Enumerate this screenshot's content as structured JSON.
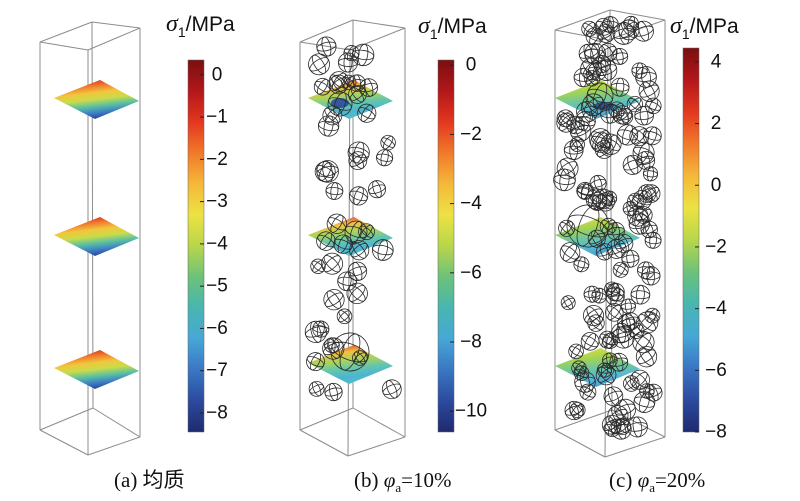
{
  "colormap": [
    "#7a0f10",
    "#b3171a",
    "#e3371f",
    "#f17a2a",
    "#f5b83a",
    "#ece243",
    "#b8d64a",
    "#6cc27a",
    "#48b6b0",
    "#47a7d6",
    "#3a76c4",
    "#2c4a9e",
    "#1f2b6e"
  ],
  "panels": [
    {
      "colorbar": {
        "title": {
          "symbol": "σ",
          "subscript": "1",
          "unit": "/MPa"
        },
        "range": [
          -8.45,
          0.35
        ],
        "ticks": [
          {
            "value": 0,
            "label": "0"
          },
          {
            "value": -1,
            "label": "−1"
          },
          {
            "value": -2,
            "label": "−2"
          },
          {
            "value": -3,
            "label": "−3"
          },
          {
            "value": -4,
            "label": "−4"
          },
          {
            "value": -5,
            "label": "−5"
          },
          {
            "value": -6,
            "label": "−6"
          },
          {
            "value": -7,
            "label": "−7"
          },
          {
            "value": -8,
            "label": "−8"
          }
        ]
      },
      "slice_colors": [
        "#d9281f",
        "#ef7a2c",
        "#f2c63c",
        "#c9dc4a",
        "#59c0a3",
        "#3b7cc6",
        "#263a8c"
      ],
      "caption": {
        "prefix": "(a) 均质"
      }
    },
    {
      "colorbar": {
        "title": {
          "symbol": "σ",
          "subscript": "1",
          "unit": "/MPa"
        },
        "range": [
          -10.6,
          0.15
        ],
        "ticks": [
          {
            "value": 0,
            "label": "0"
          },
          {
            "value": -2,
            "label": "−2"
          },
          {
            "value": -4,
            "label": "−4"
          },
          {
            "value": -6,
            "label": "−6"
          },
          {
            "value": -8,
            "label": "−8"
          },
          {
            "value": -10,
            "label": "−10"
          }
        ]
      },
      "slice_colors": [
        "#e2452a",
        "#f0c144",
        "#a9d45c",
        "#63c6ad",
        "#4cb4d2",
        "#58bfc4"
      ],
      "caption": {
        "prefix": "(b) ",
        "symbol": "φ",
        "subscript": "a",
        "suffix": "=10%"
      }
    },
    {
      "colorbar": {
        "title": {
          "symbol": "σ",
          "subscript": "1",
          "unit": "/MPa"
        },
        "range": [
          -8.0,
          4.45
        ],
        "ticks": [
          {
            "value": 4,
            "label": "4"
          },
          {
            "value": 2,
            "label": "2"
          },
          {
            "value": 0,
            "label": "0"
          },
          {
            "value": -2,
            "label": "−2"
          },
          {
            "value": -4,
            "label": "−4"
          },
          {
            "value": -6,
            "label": "−6"
          },
          {
            "value": -8,
            "label": "−8"
          }
        ]
      },
      "slice_colors": [
        "#d6dc48",
        "#a8d44e",
        "#72c79a",
        "#56b9d4",
        "#4a9ad2"
      ],
      "caption": {
        "prefix": "(c) ",
        "symbol": "φ",
        "subscript": "a",
        "suffix": "=20%"
      }
    }
  ]
}
